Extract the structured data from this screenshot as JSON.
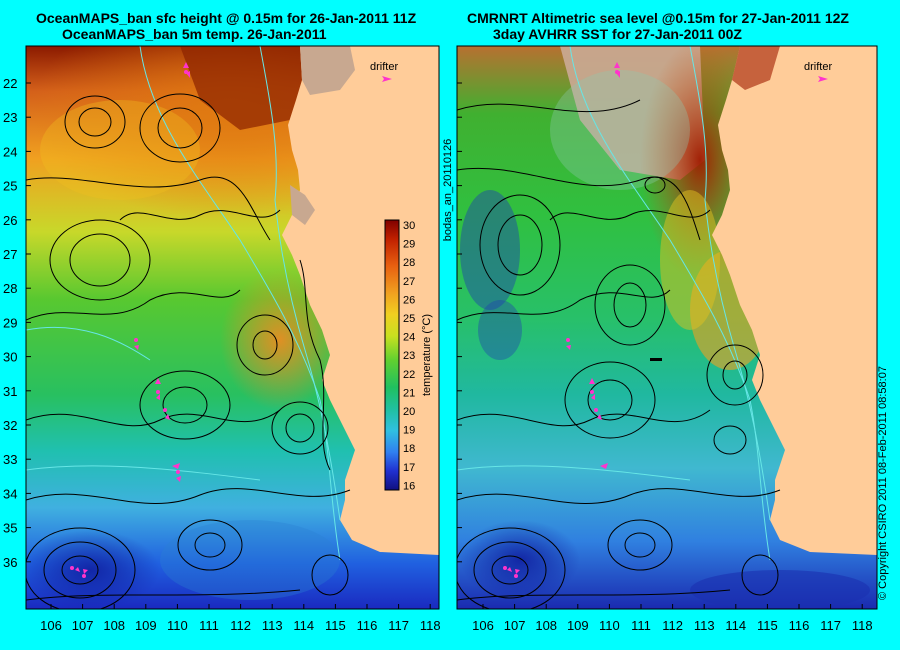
{
  "panels": [
    {
      "title1": "OceanMAPS_ban sfc height @ 0.15m for 26-Jan-2011 11Z",
      "title2": "OceanMAPS_ban 5m temp. 26-Jan-2011",
      "drifter_label": "drifter"
    },
    {
      "title1": "CMRNRT Altimetric sea level  @0.15m  for 27-Jan-2011 12Z",
      "title2": "3day AVHRR SST for 27-Jan-2011 00Z",
      "drifter_label": "drifter"
    }
  ],
  "lat_ticks": [
    "22",
    "23",
    "24",
    "25",
    "26",
    "27",
    "28",
    "29",
    "30",
    "31",
    "32",
    "33",
    "34",
    "35",
    "36"
  ],
  "lon_ticks": [
    "106",
    "107",
    "108",
    "109",
    "110",
    "111",
    "112",
    "113",
    "114",
    "115",
    "116",
    "117",
    "118"
  ],
  "colorbar": {
    "label": "temperature (°C)",
    "ticks": [
      "30",
      "29",
      "28",
      "27",
      "26",
      "25",
      "24",
      "23",
      "22",
      "21",
      "20",
      "19",
      "18",
      "17",
      "16"
    ]
  },
  "side_label": "bodas_an_20110126",
  "copyright": "© Copyright CSIRO 2011   08-Feb-2011 08:58:07",
  "colors": {
    "background": "#00ffff",
    "land": "#ffcc99",
    "drifter": "#ff33cc",
    "contour": "#000000",
    "bathymetry": "#66e6e6"
  }
}
